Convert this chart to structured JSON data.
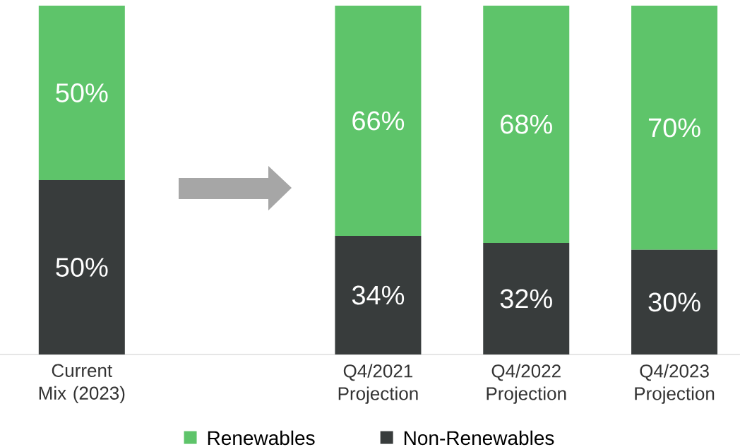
{
  "chart_data": {
    "type": "bar",
    "stacked": true,
    "categories": [
      "Current Mix (2023)",
      null,
      "Q4/2021 Projection",
      "Q4/2022 Projection",
      "Q4/2023 Projection"
    ],
    "series": [
      {
        "name": "Non-Renewables",
        "color": "#383c3c",
        "values": [
          50,
          null,
          34,
          32,
          30
        ],
        "value_labels": [
          "50%",
          null,
          "34%",
          "32%",
          "30%"
        ]
      },
      {
        "name": "Renewables",
        "color": "#5ec46a",
        "values": [
          50,
          null,
          66,
          68,
          70
        ],
        "value_labels": [
          "50%",
          null,
          "66%",
          "68%",
          "70%"
        ]
      }
    ],
    "ylim": [
      0,
      100
    ],
    "legend": "bottom"
  }
}
